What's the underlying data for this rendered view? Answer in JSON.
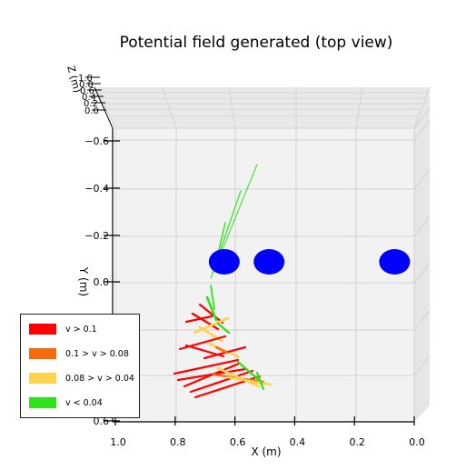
{
  "chart_data": {
    "type": "3d-quiver",
    "title": "Potential field generated (top view)",
    "xlabel": "X (m)",
    "ylabel": "Y (m)",
    "zlabel": "Z (m)",
    "x_ticks": [
      "1.0",
      "0.8",
      "0.6",
      "0.4",
      "0.2",
      "0.0"
    ],
    "y_ticks": [
      "−0.6",
      "−0.4",
      "−0.2",
      "0.0",
      "0.6"
    ],
    "z_ticks": [
      "1.0",
      "0.8",
      "0.6",
      "0.4",
      "0.2",
      "0.0"
    ],
    "xlim": [
      1.0,
      0.0
    ],
    "ylim": [
      -0.6,
      0.6
    ],
    "zlim": [
      0.0,
      1.0
    ],
    "grid": true,
    "legend_position": "lower-left",
    "obstacles": [
      {
        "x": 0.66,
        "y": 0.0,
        "color": "#0000ff"
      },
      {
        "x": 0.51,
        "y": 0.0,
        "color": "#0000ff"
      },
      {
        "x": 0.09,
        "y": 0.0,
        "color": "#0000ff"
      }
    ],
    "legend": [
      {
        "label": "v > 0.1",
        "color": "#ff0000"
      },
      {
        "label": "0.1 > v > 0.08",
        "color": "#f76a0b"
      },
      {
        "label": "0.08 > v > 0.04",
        "color": "#ffd350"
      },
      {
        "label": "v < 0.04",
        "color": "#2ee21b"
      }
    ]
  }
}
